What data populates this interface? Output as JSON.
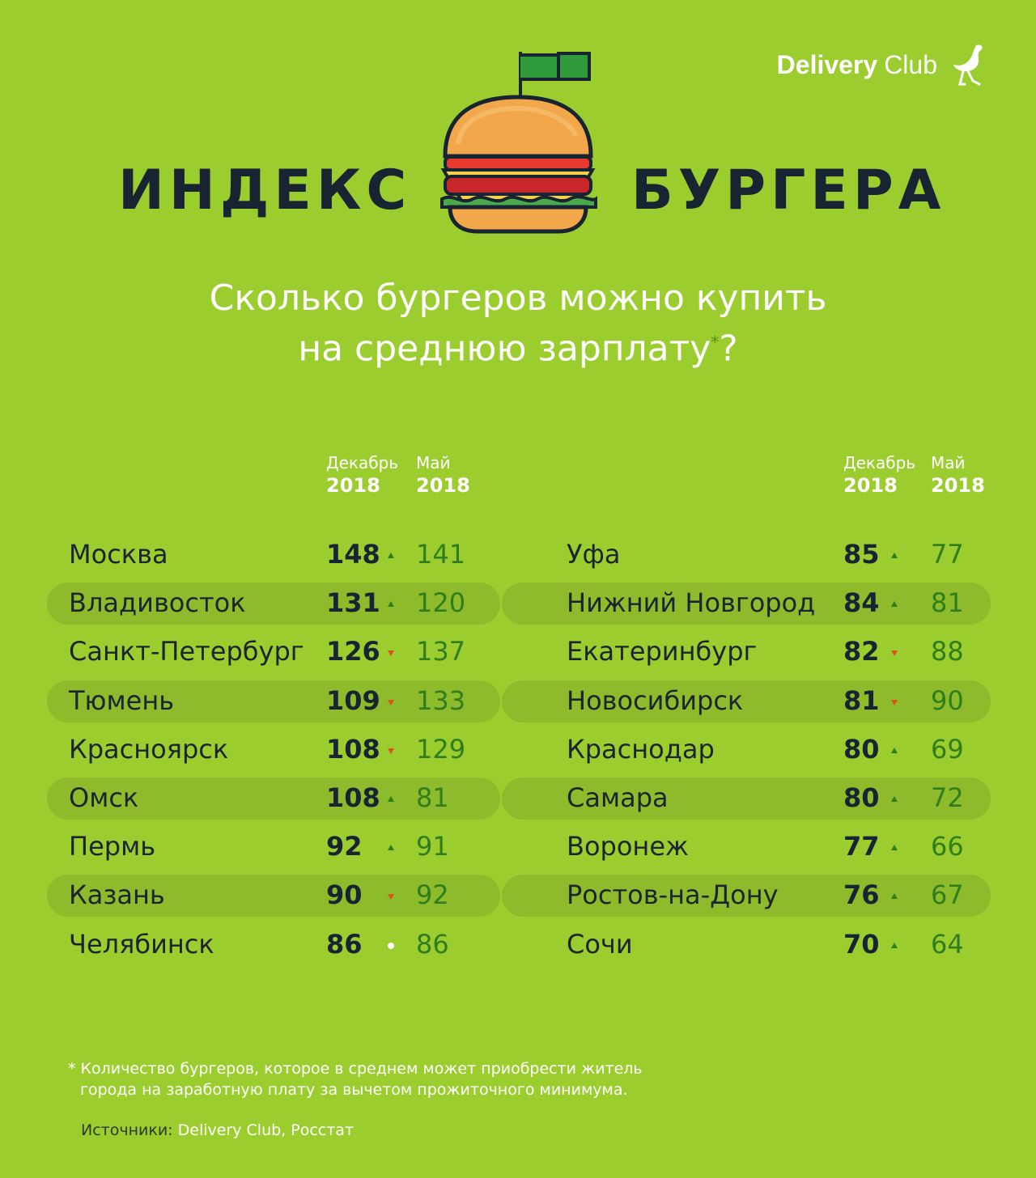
{
  "brand": {
    "part1": "Delivery",
    "part2": "Club"
  },
  "title": {
    "left": "ИНДЕКС",
    "right": "БУРГЕРА"
  },
  "subtitle": {
    "line1": "Сколько бургеров можно купить",
    "line2": "на среднюю зарплату",
    "asterisk": "*",
    "qmark": "?"
  },
  "headers": {
    "dec_month": "Декабрь",
    "dec_year": "2018",
    "may_month": "Май",
    "may_year": "2018"
  },
  "colors": {
    "background": "#9ccd2f",
    "stripe": "#8dbb2b",
    "up": "#2f7d1c",
    "down": "#e0501e",
    "same": "#ffffff"
  },
  "left_table": [
    {
      "city": "Москва",
      "dec": "148",
      "trend": "up",
      "may": "141"
    },
    {
      "city": "Владивосток",
      "dec": "131",
      "trend": "up",
      "may": "120"
    },
    {
      "city": "Санкт-Петербург",
      "dec": "126",
      "trend": "down",
      "may": "137"
    },
    {
      "city": "Тюмень",
      "dec": "109",
      "trend": "down",
      "may": "133"
    },
    {
      "city": "Красноярск",
      "dec": "108",
      "trend": "down",
      "may": "129"
    },
    {
      "city": "Омск",
      "dec": "108",
      "trend": "up",
      "may": "81"
    },
    {
      "city": "Пермь",
      "dec": "92",
      "trend": "up",
      "may": "91"
    },
    {
      "city": "Казань",
      "dec": "90",
      "trend": "down",
      "may": "92"
    },
    {
      "city": "Челябинск",
      "dec": "86",
      "trend": "same",
      "may": "86"
    }
  ],
  "right_table": [
    {
      "city": "Уфа",
      "dec": "85",
      "trend": "up",
      "may": "77"
    },
    {
      "city": "Нижний Новгород",
      "dec": "84",
      "trend": "up",
      "may": "81"
    },
    {
      "city": "Екатеринбург",
      "dec": "82",
      "trend": "down",
      "may": "88"
    },
    {
      "city": "Новосибирск",
      "dec": "81",
      "trend": "down",
      "may": "90"
    },
    {
      "city": "Краснодар",
      "dec": "80",
      "trend": "up",
      "may": "69"
    },
    {
      "city": "Самара",
      "dec": "80",
      "trend": "up",
      "may": "72"
    },
    {
      "city": "Воронеж",
      "dec": "77",
      "trend": "up",
      "may": "66"
    },
    {
      "city": "Ростов-на-Дону",
      "dec": "76",
      "trend": "up",
      "may": "67"
    },
    {
      "city": "Сочи",
      "dec": "70",
      "trend": "up",
      "may": "64"
    }
  ],
  "footnote": {
    "star": "*",
    "line1": "Количество бургеров, которое в среднем может приобрести житель",
    "line2": "города на заработную плату за вычетом прожиточного минимума."
  },
  "sources": {
    "label": "Источники:",
    "text": "Delivery Club, Росстат"
  }
}
